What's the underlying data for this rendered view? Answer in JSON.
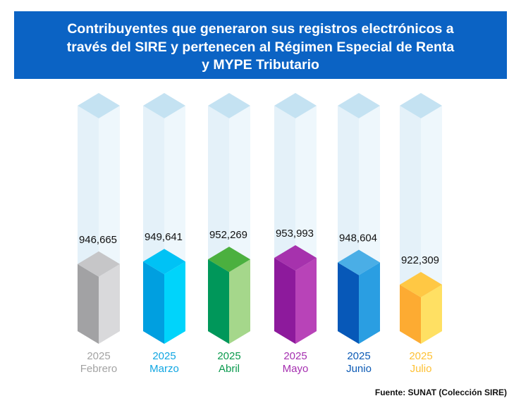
{
  "title": {
    "lines": [
      "Contribuyentes que generaron sus registros electrónicos a",
      "través del SIRE y pertenecen al Régimen Especial de Renta",
      "y MYPE Tributario"
    ]
  },
  "chart_data": {
    "type": "bar",
    "title": "Contribuyentes que generaron sus registros electrónicos a través del SIRE y pertenecen al Régimen Especial de Renta y MYPE Tributario",
    "xlabel": "",
    "ylabel": "",
    "categories": [
      "Febrero",
      "Marzo",
      "Abril",
      "Mayo",
      "Junio",
      "Julio"
    ],
    "years": [
      "2025",
      "2025",
      "2025",
      "2025",
      "2025",
      "2025"
    ],
    "values": [
      946665,
      949641,
      952269,
      953993,
      948604,
      922309
    ],
    "value_labels": [
      "946,665",
      "949,641",
      "952,269",
      "953,993",
      "948,604",
      "922,309"
    ],
    "ylim": [
      900000,
      1000000
    ],
    "colors": [
      {
        "left": "#a2a2a4",
        "right": "#d9d9db",
        "top": "#c6c6c8",
        "label": "#a3a3a3"
      },
      {
        "left": "#009fe0",
        "right": "#00d4fb",
        "top": "#00c2f5",
        "label": "#10a6e2"
      },
      {
        "left": "#00975a",
        "right": "#a5d78b",
        "top": "#4bb03f",
        "label": "#0a9a4e"
      },
      {
        "left": "#8d1a9c",
        "right": "#b843b8",
        "top": "#a632ad",
        "label": "#a52fb0"
      },
      {
        "left": "#0758b8",
        "right": "#2a9ee2",
        "top": "#4aaee6",
        "label": "#0c5ab5"
      },
      {
        "left": "#fdab32",
        "right": "#ffe063",
        "top": "#ffc844",
        "label": "#fec135"
      }
    ]
  },
  "source": "Fuente: SUNAT (Colección SIRE)"
}
